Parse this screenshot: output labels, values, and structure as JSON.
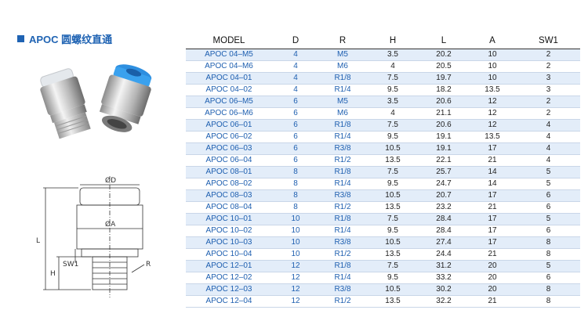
{
  "header": {
    "title": "APOC 圆螺纹直通"
  },
  "diagram": {
    "labels": [
      "ØD",
      "ØA",
      "L",
      "H",
      "SW1",
      "R"
    ]
  },
  "table": {
    "header": [
      "MODEL",
      "D",
      "R",
      "H",
      "L",
      "A",
      "SW1"
    ],
    "rows": [
      [
        "APOC 04–M5",
        "4",
        "M5",
        "3.5",
        "20.2",
        "10",
        "2"
      ],
      [
        "APOC 04–M6",
        "4",
        "M6",
        "4",
        "20.5",
        "10",
        "2"
      ],
      [
        "APOC 04–01",
        "4",
        "R1/8",
        "7.5",
        "19.7",
        "10",
        "3"
      ],
      [
        "APOC 04–02",
        "4",
        "R1/4",
        "9.5",
        "18.2",
        "13.5",
        "3"
      ],
      [
        "APOC 06–M5",
        "6",
        "M5",
        "3.5",
        "20.6",
        "12",
        "2"
      ],
      [
        "APOC 06–M6",
        "6",
        "M6",
        "4",
        "21.1",
        "12",
        "2"
      ],
      [
        "APOC 06–01",
        "6",
        "R1/8",
        "7.5",
        "20.6",
        "12",
        "4"
      ],
      [
        "APOC 06–02",
        "6",
        "R1/4",
        "9.5",
        "19.1",
        "13.5",
        "4"
      ],
      [
        "APOC 06–03",
        "6",
        "R3/8",
        "10.5",
        "19.1",
        "17",
        "4"
      ],
      [
        "APOC 06–04",
        "6",
        "R1/2",
        "13.5",
        "22.1",
        "21",
        "4"
      ],
      [
        "APOC 08–01",
        "8",
        "R1/8",
        "7.5",
        "25.7",
        "14",
        "5"
      ],
      [
        "APOC 08–02",
        "8",
        "R1/4",
        "9.5",
        "24.7",
        "14",
        "5"
      ],
      [
        "APOC 08–03",
        "8",
        "R3/8",
        "10.5",
        "20.7",
        "17",
        "6"
      ],
      [
        "APOC 08–04",
        "8",
        "R1/2",
        "13.5",
        "23.2",
        "21",
        "6"
      ],
      [
        "APOC 10–01",
        "10",
        "R1/8",
        "7.5",
        "28.4",
        "17",
        "5"
      ],
      [
        "APOC 10–02",
        "10",
        "R1/4",
        "9.5",
        "28.4",
        "17",
        "6"
      ],
      [
        "APOC 10–03",
        "10",
        "R3/8",
        "10.5",
        "27.4",
        "17",
        "8"
      ],
      [
        "APOC 10–04",
        "10",
        "R1/2",
        "13.5",
        "24.4",
        "21",
        "8"
      ],
      [
        "APOC 12–01",
        "12",
        "R1/8",
        "7.5",
        "31.2",
        "20",
        "5"
      ],
      [
        "APOC 12–02",
        "12",
        "R1/4",
        "9.5",
        "33.2",
        "20",
        "6"
      ],
      [
        "APOC 12–03",
        "12",
        "R3/8",
        "10.5",
        "30.2",
        "20",
        "8"
      ],
      [
        "APOC 12–04",
        "12",
        "R1/2",
        "13.5",
        "32.2",
        "21",
        "8"
      ]
    ]
  }
}
